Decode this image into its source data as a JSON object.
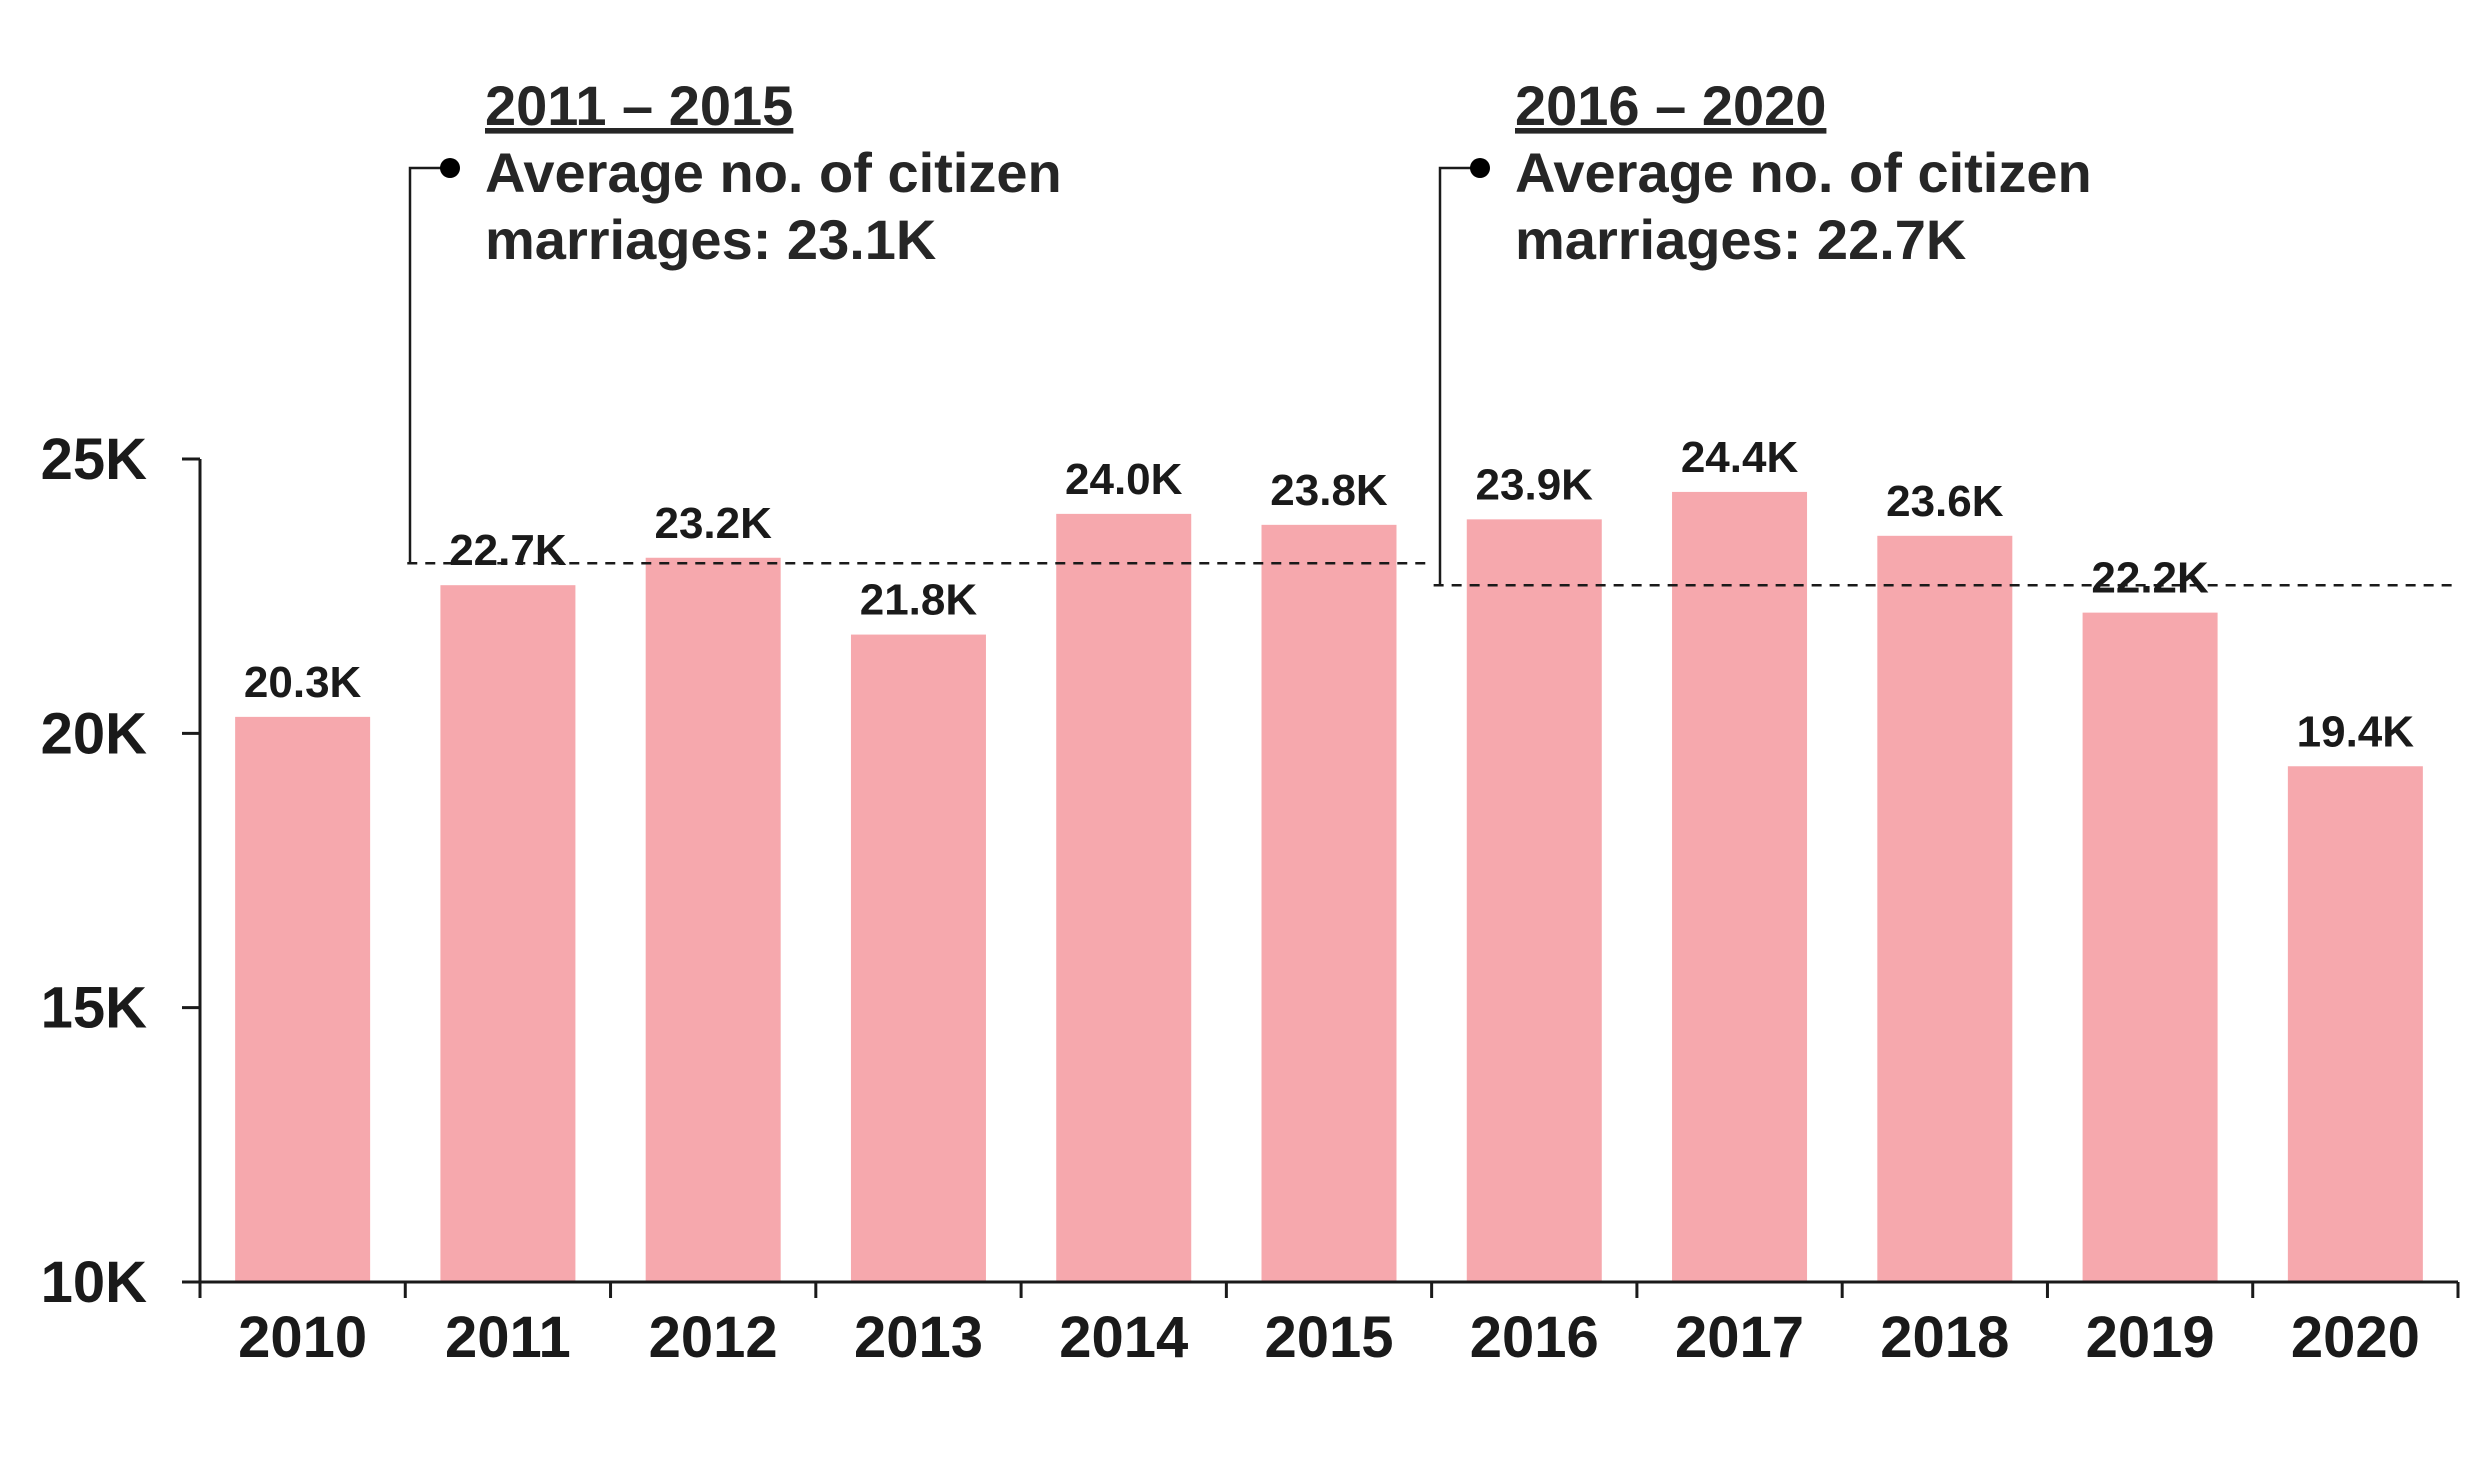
{
  "chart_data": {
    "type": "bar",
    "categories": [
      "2010",
      "2011",
      "2012",
      "2013",
      "2014",
      "2015",
      "2016",
      "2017",
      "2018",
      "2019",
      "2020"
    ],
    "values": [
      20.3,
      22.7,
      23.2,
      21.8,
      24.0,
      23.8,
      23.9,
      24.4,
      23.6,
      22.2,
      19.4
    ],
    "value_labels": [
      "20.3K",
      "22.7K",
      "23.2K",
      "21.8K",
      "24.0K",
      "23.8K",
      "23.9K",
      "24.4K",
      "23.6K",
      "22.2K",
      "19.4K"
    ],
    "title": "",
    "xlabel": "",
    "ylabel": "",
    "ylim": [
      10,
      25
    ],
    "yticks": [
      10,
      15,
      20,
      25
    ],
    "ytick_labels": [
      "10K",
      "15K",
      "20K",
      "25K"
    ],
    "grid": false,
    "bar_color": "#f6a8ad",
    "axis_color": "#1a1a1a",
    "text_color": "#262626",
    "annotations": [
      {
        "title": "2011 – 2015",
        "line1": "Average no. of citizen",
        "line2": "marriages: 23.1K",
        "value": 23.1,
        "start_category": "2011",
        "end_category": "2015"
      },
      {
        "title": "2016 – 2020",
        "line1": "Average no. of citizen",
        "line2": "marriages: 22.7K",
        "value": 22.7,
        "start_category": "2016",
        "end_category": "2020"
      }
    ]
  }
}
